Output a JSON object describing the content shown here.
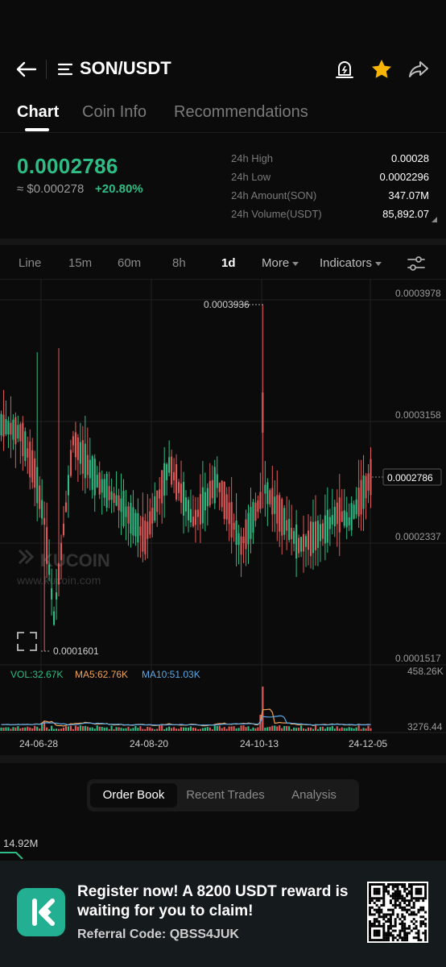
{
  "header": {
    "pair": "SON/USDT"
  },
  "tabs": [
    "Chart",
    "Coin Info",
    "Recommendations"
  ],
  "price": {
    "last": "0.0002786",
    "fiat": "≈ $0.000278",
    "change": "+20.80%"
  },
  "stats": [
    {
      "label": "24h High",
      "value": "0.00028"
    },
    {
      "label": "24h Low",
      "value": "0.0002296"
    },
    {
      "label": "24h Amount(SON)",
      "value": "347.07M"
    },
    {
      "label": "24h Volume(USDT)",
      "value": "85,892.07"
    }
  ],
  "timeframes": {
    "line": "Line",
    "m15": "15m",
    "m60": "60m",
    "h8": "8h",
    "d1": "1d",
    "more": "More",
    "indicators": "Indicators"
  },
  "colors": {
    "up": "#2ebd85",
    "down": "#e05a5a",
    "accent_star": "#f7b500",
    "ma5": "#f0a35a",
    "ma10": "#5aa9e6"
  },
  "chart_data": {
    "type": "candlestick",
    "y_axis_labels": [
      "0.0003978",
      "0.0003158",
      "0.0002337",
      "0.0001517"
    ],
    "ylim": [
      0.0001517,
      0.0003978
    ],
    "current_price_label": "0.0002786",
    "high_marker": "0.0003936",
    "low_marker": "0.0001601",
    "x_tick_labels": [
      "24-06-28",
      "24-08-20",
      "24-10-13",
      "24-12-05"
    ],
    "watermark": {
      "brand": "KUCOIN",
      "url": "www.kucoin.com"
    },
    "volume": {
      "vol_label": "VOL:32.67K",
      "ma5_label": "MA5:62.76K",
      "ma10_label": "MA10:51.03K",
      "axis_top": "458.26K",
      "axis_bottom": "3276.44"
    }
  },
  "order_tabs": [
    "Order Book",
    "Recent Trades",
    "Analysis"
  ],
  "depth": {
    "value": "14.92M"
  },
  "banner": {
    "text": "Register now! A 8200 USDT reward is waiting for you to claim!",
    "referral": "Referral Code: QBSS4JUK"
  }
}
